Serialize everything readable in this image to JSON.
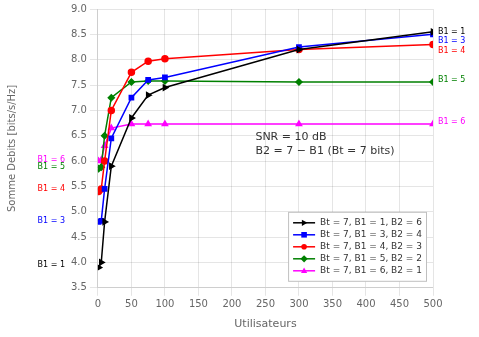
{
  "chart_data": {
    "type": "line",
    "xlabel": "Utilisateurs",
    "ylabel": "Somme Debits [bits/s/Hz]",
    "xlim": [
      0,
      500
    ],
    "ylim": [
      3.5,
      9
    ],
    "xticks": [
      0,
      50,
      100,
      150,
      200,
      250,
      300,
      350,
      400,
      450,
      500
    ],
    "yticks": [
      3.5,
      {
        "value": 4,
        "label": "4.0"
      },
      4.5,
      {
        "value": 5,
        "label": "5.0"
      },
      5.5,
      {
        "value": 6,
        "label": "6.0"
      },
      6.5,
      {
        "value": 7,
        "label": "7.0"
      },
      7.5,
      {
        "value": 8,
        "label": "8.0"
      },
      8.5,
      {
        "value": 9,
        "label": "9.0"
      }
    ],
    "grid": true,
    "legend": "lower right",
    "series": [
      {
        "name": "Bt = 7, B1 = 1, B2 = 6",
        "color": "black",
        "marker": "triangle-right",
        "x": [
          1,
          5,
          10,
          20,
          50,
          75,
          100,
          300,
          500
        ],
        "values": [
          3.9,
          4.0,
          4.8,
          5.9,
          6.85,
          7.3,
          7.45,
          8.2,
          8.55
        ]
      },
      {
        "name": "Bt = 7, B1 = 3, B2 = 4",
        "color": "blue",
        "marker": "square",
        "x": [
          1,
          5,
          10,
          20,
          50,
          75,
          100,
          300,
          500
        ],
        "values": [
          4.8,
          4.82,
          5.45,
          6.45,
          7.25,
          7.6,
          7.65,
          8.25,
          8.5
        ]
      },
      {
        "name": "Bt = 7, B1 = 4, B2 = 3",
        "color": "red",
        "marker": "circle",
        "x": [
          1,
          5,
          10,
          20,
          50,
          75,
          100,
          300,
          500
        ],
        "values": [
          5.4,
          5.45,
          6.0,
          7.0,
          7.75,
          7.97,
          8.02,
          8.2,
          8.3
        ]
      },
      {
        "name": "Bt = 7, B1 = 5, B2 = 2",
        "color": "green",
        "marker": "diamond",
        "x": [
          1,
          5,
          10,
          20,
          50,
          75,
          100,
          300,
          500
        ],
        "values": [
          5.85,
          5.88,
          6.5,
          7.25,
          7.56,
          7.58,
          7.58,
          7.56,
          7.56
        ]
      },
      {
        "name": "Bt = 7, B1 = 6, B2 = 1",
        "color": "magenta",
        "marker": "triangle-up",
        "x": [
          1,
          5,
          10,
          20,
          50,
          75,
          100,
          300,
          500
        ],
        "values": [
          6.0,
          6.02,
          6.3,
          6.65,
          6.73,
          6.73,
          6.73,
          6.73,
          6.73
        ]
      }
    ],
    "annotations": [
      {
        "text": "SNR = 10 dB\nB2 = 7 − B1 (Bt = 7 bits)"
      },
      {
        "text": "B1 = 1",
        "y": 8.55,
        "color": "black",
        "side": "right"
      },
      {
        "text": "B1 = 3",
        "y": 8.38,
        "color": "blue",
        "side": "right"
      },
      {
        "text": "B1 = 4",
        "y": 8.18,
        "color": "red",
        "side": "right"
      },
      {
        "text": "B1 = 5",
        "y": 7.6,
        "color": "green",
        "side": "right"
      },
      {
        "text": "B1 = 6",
        "y": 6.78,
        "color": "magenta",
        "side": "right"
      },
      {
        "text": "B1 = 6",
        "y": 6.02,
        "color": "magenta",
        "side": "left"
      },
      {
        "text": "B1 = 5",
        "y": 5.88,
        "color": "green",
        "side": "left"
      },
      {
        "text": "B1 = 4",
        "y": 5.45,
        "color": "red",
        "side": "left"
      },
      {
        "text": "B1 = 3",
        "y": 4.82,
        "color": "blue",
        "side": "left"
      },
      {
        "text": "B1 = 1",
        "y": 3.95,
        "color": "black",
        "side": "left"
      }
    ]
  }
}
